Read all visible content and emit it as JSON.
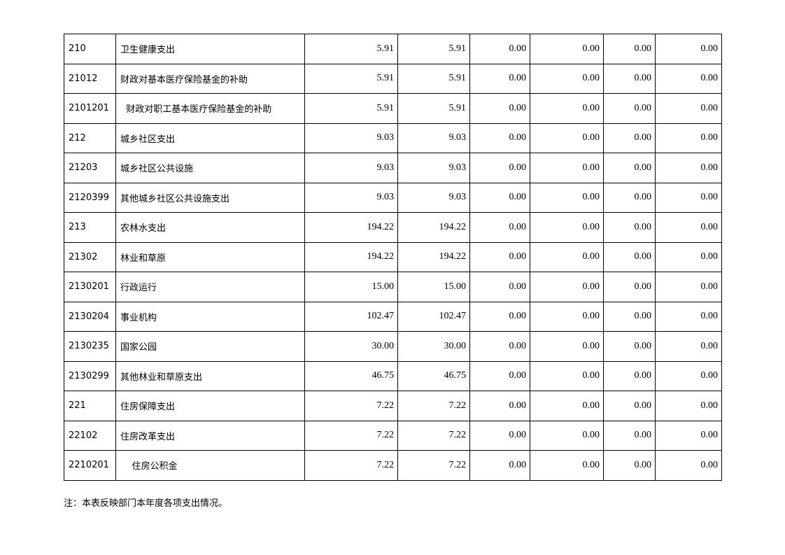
{
  "table": {
    "rows": [
      {
        "code": "210",
        "name": "卫生健康支出",
        "values": [
          "5.91",
          "5.91",
          "0.00",
          "0.00",
          "0.00",
          "0.00"
        ]
      },
      {
        "code": "21012",
        "name": "财政对基本医疗保险基金的补助",
        "values": [
          "5.91",
          "5.91",
          "0.00",
          "0.00",
          "0.00",
          "0.00"
        ]
      },
      {
        "code": "2101201",
        "name": "  财政对职工基本医疗保险基金的补助",
        "values": [
          "5.91",
          "5.91",
          "0.00",
          "0.00",
          "0.00",
          "0.00"
        ]
      },
      {
        "code": "212",
        "name": "城乡社区支出",
        "values": [
          "9.03",
          "9.03",
          "0.00",
          "0.00",
          "0.00",
          "0.00"
        ]
      },
      {
        "code": "21203",
        "name": "城乡社区公共设施",
        "values": [
          "9.03",
          "9.03",
          "0.00",
          "0.00",
          "0.00",
          "0.00"
        ]
      },
      {
        "code": "2120399",
        "name": "其他城乡社区公共设施支出",
        "values": [
          "9.03",
          "9.03",
          "0.00",
          "0.00",
          "0.00",
          "0.00"
        ]
      },
      {
        "code": "213",
        "name": "农林水支出",
        "values": [
          "194.22",
          "194.22",
          "0.00",
          "0.00",
          "0.00",
          "0.00"
        ]
      },
      {
        "code": "21302",
        "name": "林业和草原",
        "values": [
          "194.22",
          "194.22",
          "0.00",
          "0.00",
          "0.00",
          "0.00"
        ]
      },
      {
        "code": "2130201",
        "name": "行政运行",
        "values": [
          "15.00",
          "15.00",
          "0.00",
          "0.00",
          "0.00",
          "0.00"
        ]
      },
      {
        "code": "2130204",
        "name": "事业机构",
        "values": [
          "102.47",
          "102.47",
          "0.00",
          "0.00",
          "0.00",
          "0.00"
        ]
      },
      {
        "code": "2130235",
        "name": "国家公园",
        "values": [
          "30.00",
          "30.00",
          "0.00",
          "0.00",
          "0.00",
          "0.00"
        ]
      },
      {
        "code": "2130299",
        "name": "其他林业和草原支出",
        "values": [
          "46.75",
          "46.75",
          "0.00",
          "0.00",
          "0.00",
          "0.00"
        ]
      },
      {
        "code": "221",
        "name": "住房保障支出",
        "values": [
          "7.22",
          "7.22",
          "0.00",
          "0.00",
          "0.00",
          "0.00"
        ]
      },
      {
        "code": "22102",
        "name": "住房改革支出",
        "values": [
          "7.22",
          "7.22",
          "0.00",
          "0.00",
          "0.00",
          "0.00"
        ]
      },
      {
        "code": "2210201",
        "name": "    住房公积金",
        "values": [
          "7.22",
          "7.22",
          "0.00",
          "0.00",
          "0.00",
          "0.00"
        ]
      }
    ]
  },
  "note": "注：本表反映部门本年度各项支出情况。"
}
